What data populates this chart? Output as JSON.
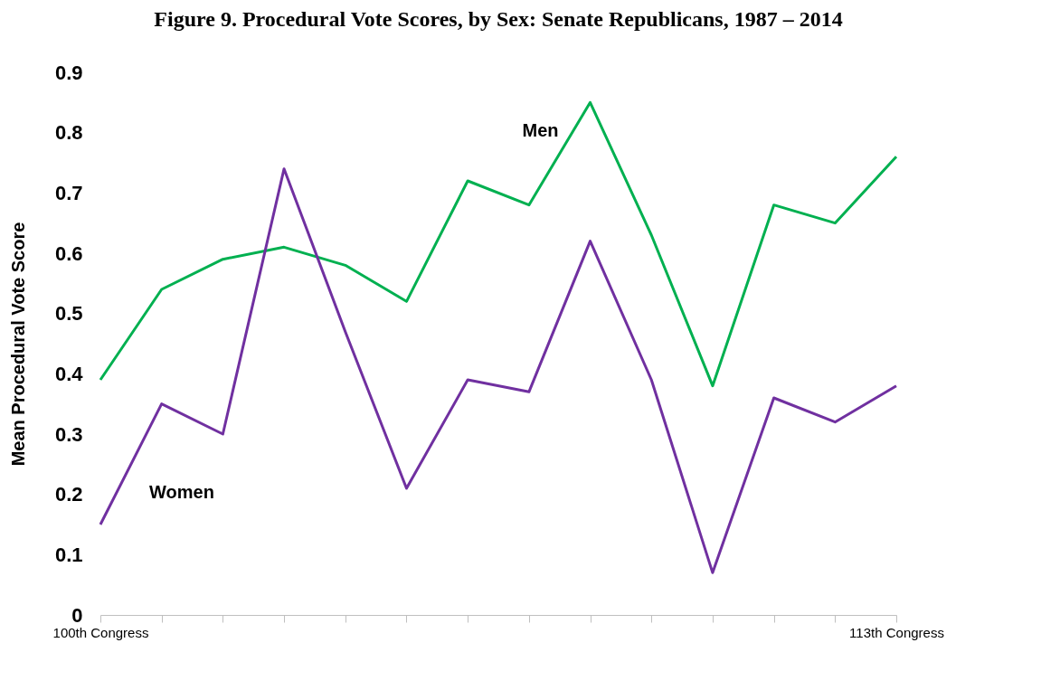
{
  "chart_data": {
    "type": "line",
    "title": "Figure 9. Procedural Vote Scores, by Sex: Senate Republicans, 1987 – 2014",
    "ylabel": "Mean Procedural Vote Score",
    "categories": [
      "100th Congress",
      null,
      null,
      null,
      null,
      null,
      null,
      null,
      null,
      null,
      null,
      null,
      null,
      "113th Congress"
    ],
    "series": [
      {
        "name": "Men",
        "color": "#00b050",
        "values": [
          0.39,
          0.54,
          0.59,
          0.61,
          0.58,
          0.52,
          0.72,
          0.68,
          0.85,
          0.63,
          0.38,
          0.68,
          0.65,
          0.76
        ]
      },
      {
        "name": "Women",
        "color": "#7030a0",
        "values": [
          0.15,
          0.35,
          0.3,
          0.74,
          0.47,
          0.21,
          0.39,
          0.37,
          0.62,
          0.39,
          0.07,
          0.36,
          0.32,
          0.38
        ]
      }
    ],
    "ylim": [
      0,
      0.9
    ],
    "yticks": [
      0,
      0.1,
      0.2,
      0.3,
      0.4,
      0.5,
      0.6,
      0.7,
      0.8,
      0.9
    ],
    "grid": false,
    "legend": false,
    "marker": "none",
    "line_style": "solid"
  }
}
